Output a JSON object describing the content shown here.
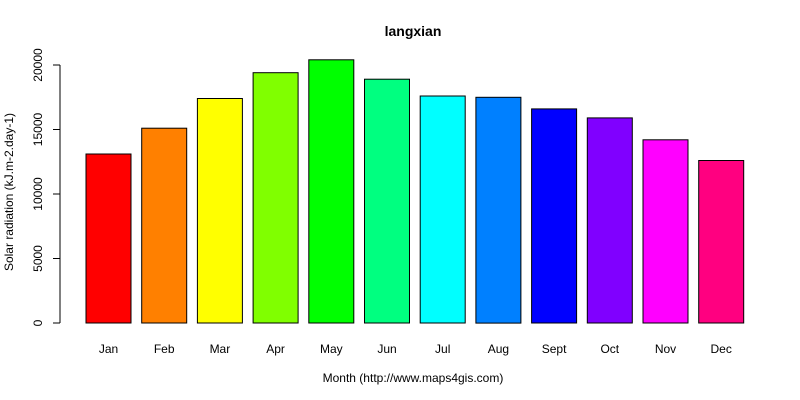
{
  "chart_data": {
    "type": "bar",
    "title": "langxian",
    "xlabel": "Month (http://www.maps4gis.com)",
    "ylabel": "Solar radiation (kJ.m-2.day-1)",
    "categories": [
      "Jan",
      "Feb",
      "Mar",
      "Apr",
      "May",
      "Jun",
      "Jul",
      "Aug",
      "Sept",
      "Oct",
      "Nov",
      "Dec"
    ],
    "values": [
      13100,
      15100,
      17400,
      19400,
      20400,
      18900,
      17600,
      17500,
      16600,
      15900,
      14200,
      12600
    ],
    "colors": [
      "#FF0000",
      "#FF8000",
      "#FFFF00",
      "#80FF00",
      "#00FF00",
      "#00FF80",
      "#00FFFF",
      "#0080FF",
      "#0000FF",
      "#8000FF",
      "#FF00FF",
      "#FF0080"
    ],
    "ylim": [
      0,
      20000
    ],
    "yticks": [
      0,
      5000,
      10000,
      15000,
      20000
    ],
    "grid": false,
    "legend": "none"
  }
}
